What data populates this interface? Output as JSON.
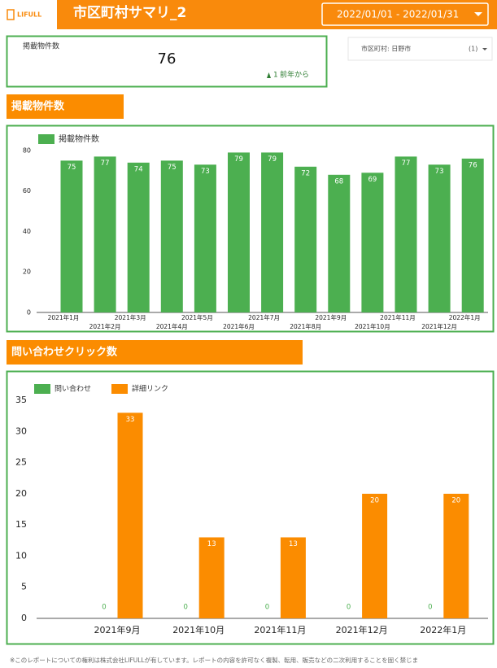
{
  "header": {
    "logo": "LIFULL",
    "title": "市区町村サマリ_2",
    "date_range": "2022/01/01 - 2022/01/31"
  },
  "scorecard": {
    "label": "掲載物件数",
    "value": 76,
    "delta": 1,
    "delta_label": "前年から"
  },
  "filter": {
    "label": "市区町村: 日野市",
    "count": "(1)"
  },
  "sections": [
    "掲載物件数",
    "問い合わせクリック数"
  ],
  "chart_data": [
    {
      "type": "bar",
      "categories": [
        "2021年1月",
        "2021年2月",
        "2021年3月",
        "2021年4月",
        "2021年5月",
        "2021年6月",
        "2021年7月",
        "2021年8月",
        "2021年9月",
        "2021年10月",
        "2021年11月",
        "2021年12月",
        "2022年1月"
      ],
      "series": [
        {
          "name": "掲載物件数",
          "color": "#4caf50",
          "values": [
            75,
            77,
            74,
            75,
            73,
            79,
            79,
            72,
            68,
            69,
            77,
            73,
            76
          ]
        }
      ],
      "ylim": [
        0,
        84
      ],
      "yticks": [
        0,
        20,
        40,
        60,
        80
      ],
      "legend": "top-left"
    },
    {
      "type": "bar",
      "categories": [
        "2021年9月",
        "2021年10月",
        "2021年11月",
        "2021年12月",
        "2022年1月"
      ],
      "series": [
        {
          "name": "問い合わせ",
          "color": "#4caf50",
          "values": [
            0,
            0,
            0,
            0,
            0
          ]
        },
        {
          "name": "詳細リンク",
          "color": "#fb8c00",
          "values": [
            33,
            13,
            13,
            20,
            20
          ]
        }
      ],
      "ylim": [
        0,
        35
      ],
      "yticks": [
        0,
        5,
        10,
        15,
        20,
        25,
        30,
        35
      ],
      "legend": "top-left"
    }
  ],
  "footer": "※このレポートについての権利は株式会社LIFULLが有しています。レポートの内容を許可なく複製、転用、販売などの二次利用することを固く禁じま"
}
